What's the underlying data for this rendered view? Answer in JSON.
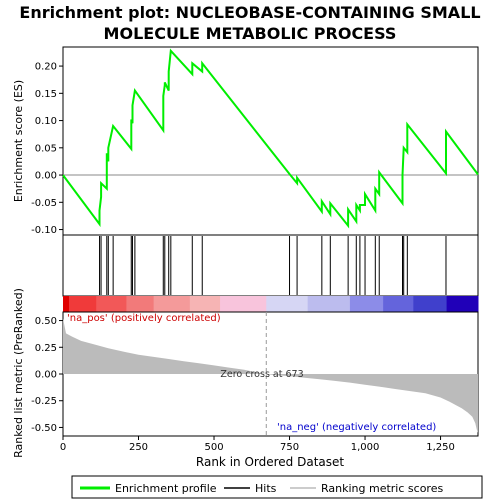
{
  "title_line1": "Enrichment plot: NUCLEOBASE-CONTAINING SMALL",
  "title_line2": "MOLECULE METABOLIC PROCESS",
  "ylabel_es": "Enrichment score (ES)",
  "ylabel_metric": "Ranked list metric (PreRanked)",
  "xlabel": "Rank in Ordered Dataset",
  "pos_label": "'na_pos' (positively correlated)",
  "neg_label": "'na_neg' (negatively correlated)",
  "zero_cross_label": "Zero cross at 673",
  "legend": {
    "enrichment_profile": "Enrichment profile",
    "hits": "Hits",
    "ranking_metric": "Ranking metric scores"
  },
  "colors": {
    "profile": "#00ee00",
    "hits": "#000000",
    "metric_fill": "#bbbbbb",
    "pos_text": "#cc0000",
    "neg_text": "#0000cc"
  },
  "chart_data": {
    "type": "line",
    "total_rank": 1374,
    "zero_cross": 673,
    "x_ticks": [
      0,
      250,
      500,
      750,
      1000,
      1250
    ],
    "x_tick_labels": [
      "0",
      "250",
      "500",
      "750",
      "1,000",
      "1,250"
    ],
    "es_ylim": [
      -0.11,
      0.235
    ],
    "es_ticks": [
      -0.1,
      -0.05,
      0.0,
      0.05,
      0.1,
      0.15,
      0.2
    ],
    "es_tick_labels": [
      "-0.10",
      "-0.05",
      "0.00",
      "0.05",
      "0.10",
      "0.15",
      "0.20"
    ],
    "metric_ylim": [
      -0.58,
      0.58
    ],
    "metric_ticks": [
      -0.5,
      -0.25,
      0.0,
      0.25,
      0.5
    ],
    "metric_tick_labels": [
      "-0.50",
      "-0.25",
      "0.00",
      "0.25",
      "0.50"
    ],
    "hits": [
      121,
      126,
      145,
      150,
      166,
      226,
      230,
      238,
      332,
      337,
      350,
      357,
      428,
      461,
      750,
      775,
      857,
      885,
      944,
      971,
      983,
      1000,
      1034,
      1047,
      1124,
      1128,
      1140,
      1268
    ],
    "es_profile": {
      "x": [
        0,
        121,
        121,
        126,
        126,
        145,
        145,
        150,
        150,
        166,
        166,
        226,
        226,
        230,
        230,
        238,
        238,
        332,
        332,
        337,
        337,
        350,
        350,
        357,
        357,
        428,
        428,
        461,
        461,
        750,
        750,
        775,
        775,
        857,
        857,
        885,
        885,
        944,
        944,
        971,
        971,
        983,
        983,
        1000,
        1000,
        1034,
        1034,
        1047,
        1047,
        1124,
        1124,
        1128,
        1128,
        1140,
        1140,
        1268,
        1268,
        1374
      ],
      "y": [
        0.0,
        -0.09,
        -0.065,
        -0.04,
        -0.015,
        -0.025,
        0.04,
        0.025,
        0.05,
        0.09,
        0.09,
        0.048,
        0.102,
        0.095,
        0.128,
        0.155,
        0.155,
        0.082,
        0.145,
        0.165,
        0.17,
        0.155,
        0.19,
        0.228,
        0.228,
        0.185,
        0.205,
        0.19,
        0.205,
        0.002,
        0.002,
        -0.015,
        -0.005,
        -0.067,
        -0.048,
        -0.072,
        -0.052,
        -0.093,
        -0.063,
        -0.085,
        -0.055,
        -0.065,
        -0.055,
        -0.055,
        -0.035,
        -0.065,
        -0.025,
        -0.035,
        0.005,
        -0.052,
        0.0,
        0.05,
        0.05,
        0.042,
        0.093,
        0.003,
        0.08,
        0.001
      ]
    },
    "metric_curve": {
      "x": [
        0,
        10,
        30,
        60,
        100,
        150,
        200,
        250,
        300,
        350,
        400,
        450,
        500,
        550,
        600,
        650,
        673,
        700,
        750,
        800,
        850,
        900,
        950,
        1000,
        1050,
        1100,
        1150,
        1200,
        1250,
        1280,
        1300,
        1320,
        1340,
        1355,
        1365,
        1370,
        1374
      ],
      "y": [
        0.52,
        0.38,
        0.35,
        0.31,
        0.28,
        0.24,
        0.21,
        0.18,
        0.16,
        0.14,
        0.12,
        0.1,
        0.08,
        0.06,
        0.04,
        0.01,
        0.0,
        -0.01,
        -0.02,
        -0.035,
        -0.05,
        -0.065,
        -0.08,
        -0.1,
        -0.12,
        -0.14,
        -0.16,
        -0.18,
        -0.22,
        -0.26,
        -0.29,
        -0.32,
        -0.36,
        -0.4,
        -0.46,
        -0.52,
        -0.55
      ]
    },
    "heat_segments": [
      {
        "start": 0,
        "end": 20,
        "color": "#e00000"
      },
      {
        "start": 20,
        "end": 110,
        "color": "#f03a3a"
      },
      {
        "start": 110,
        "end": 210,
        "color": "#f25858"
      },
      {
        "start": 210,
        "end": 300,
        "color": "#f27a7a"
      },
      {
        "start": 300,
        "end": 420,
        "color": "#f49a9a"
      },
      {
        "start": 420,
        "end": 520,
        "color": "#f6b4b4"
      },
      {
        "start": 520,
        "end": 673,
        "color": "#f8c4dc"
      },
      {
        "start": 673,
        "end": 810,
        "color": "#d6d6f4"
      },
      {
        "start": 810,
        "end": 950,
        "color": "#bcbcee"
      },
      {
        "start": 950,
        "end": 1060,
        "color": "#8c8ce8"
      },
      {
        "start": 1060,
        "end": 1160,
        "color": "#6464dc"
      },
      {
        "start": 1160,
        "end": 1270,
        "color": "#4040cc"
      },
      {
        "start": 1270,
        "end": 1374,
        "color": "#2000b8"
      }
    ]
  }
}
